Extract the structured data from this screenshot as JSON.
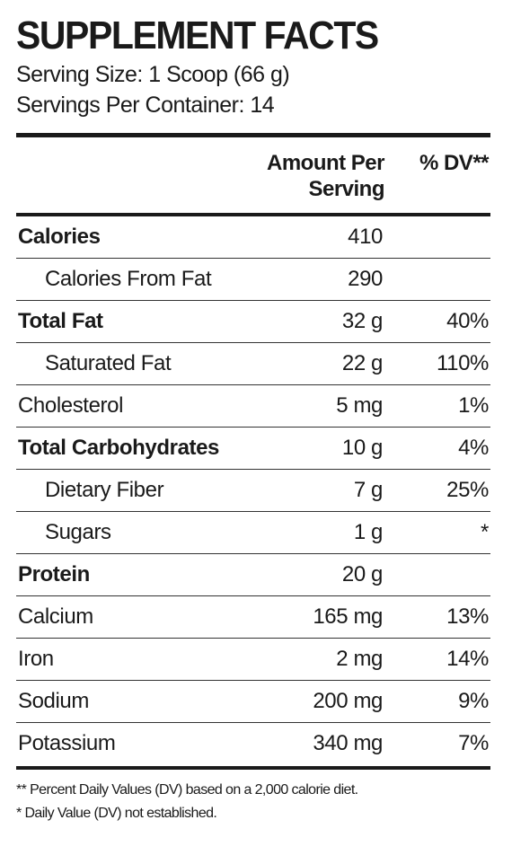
{
  "title": "SUPPLEMENT FACTS",
  "serving_size": "Serving Size: 1 Scoop (66 g)",
  "servings_per_container": "Servings Per Container: 14",
  "header": {
    "amount_line1": "Amount Per",
    "amount_line2": "Serving",
    "dv": "% DV**"
  },
  "rows": [
    {
      "name": "Calories",
      "amount": "410",
      "dv": "",
      "bold": true,
      "indent": false
    },
    {
      "name": "Calories From Fat",
      "amount": "290",
      "dv": "",
      "bold": false,
      "indent": true
    },
    {
      "name": "Total Fat",
      "amount": "32 g",
      "dv": "40%",
      "bold": true,
      "indent": false
    },
    {
      "name": "Saturated Fat",
      "amount": "22 g",
      "dv": "110%",
      "bold": false,
      "indent": true
    },
    {
      "name": "Cholesterol",
      "amount": "5 mg",
      "dv": "1%",
      "bold": false,
      "indent": false
    },
    {
      "name": "Total Carbohydrates",
      "amount": "10 g",
      "dv": "4%",
      "bold": true,
      "indent": false
    },
    {
      "name": "Dietary Fiber",
      "amount": "7 g",
      "dv": "25%",
      "bold": false,
      "indent": true
    },
    {
      "name": "Sugars",
      "amount": "1 g",
      "dv": "*",
      "bold": false,
      "indent": true
    },
    {
      "name": "Protein",
      "amount": "20 g",
      "dv": "",
      "bold": true,
      "indent": false
    },
    {
      "name": "Calcium",
      "amount": "165 mg",
      "dv": "13%",
      "bold": false,
      "indent": false
    },
    {
      "name": "Iron",
      "amount": "2 mg",
      "dv": "14%",
      "bold": false,
      "indent": false
    },
    {
      "name": "Sodium",
      "amount": "200 mg",
      "dv": "9%",
      "bold": false,
      "indent": false
    },
    {
      "name": "Potassium",
      "amount": "340 mg",
      "dv": "7%",
      "bold": false,
      "indent": false
    }
  ],
  "footnotes": [
    "** Percent Daily Values (DV) based on a 2,000 calorie diet.",
    "* Daily Value (DV) not established."
  ]
}
